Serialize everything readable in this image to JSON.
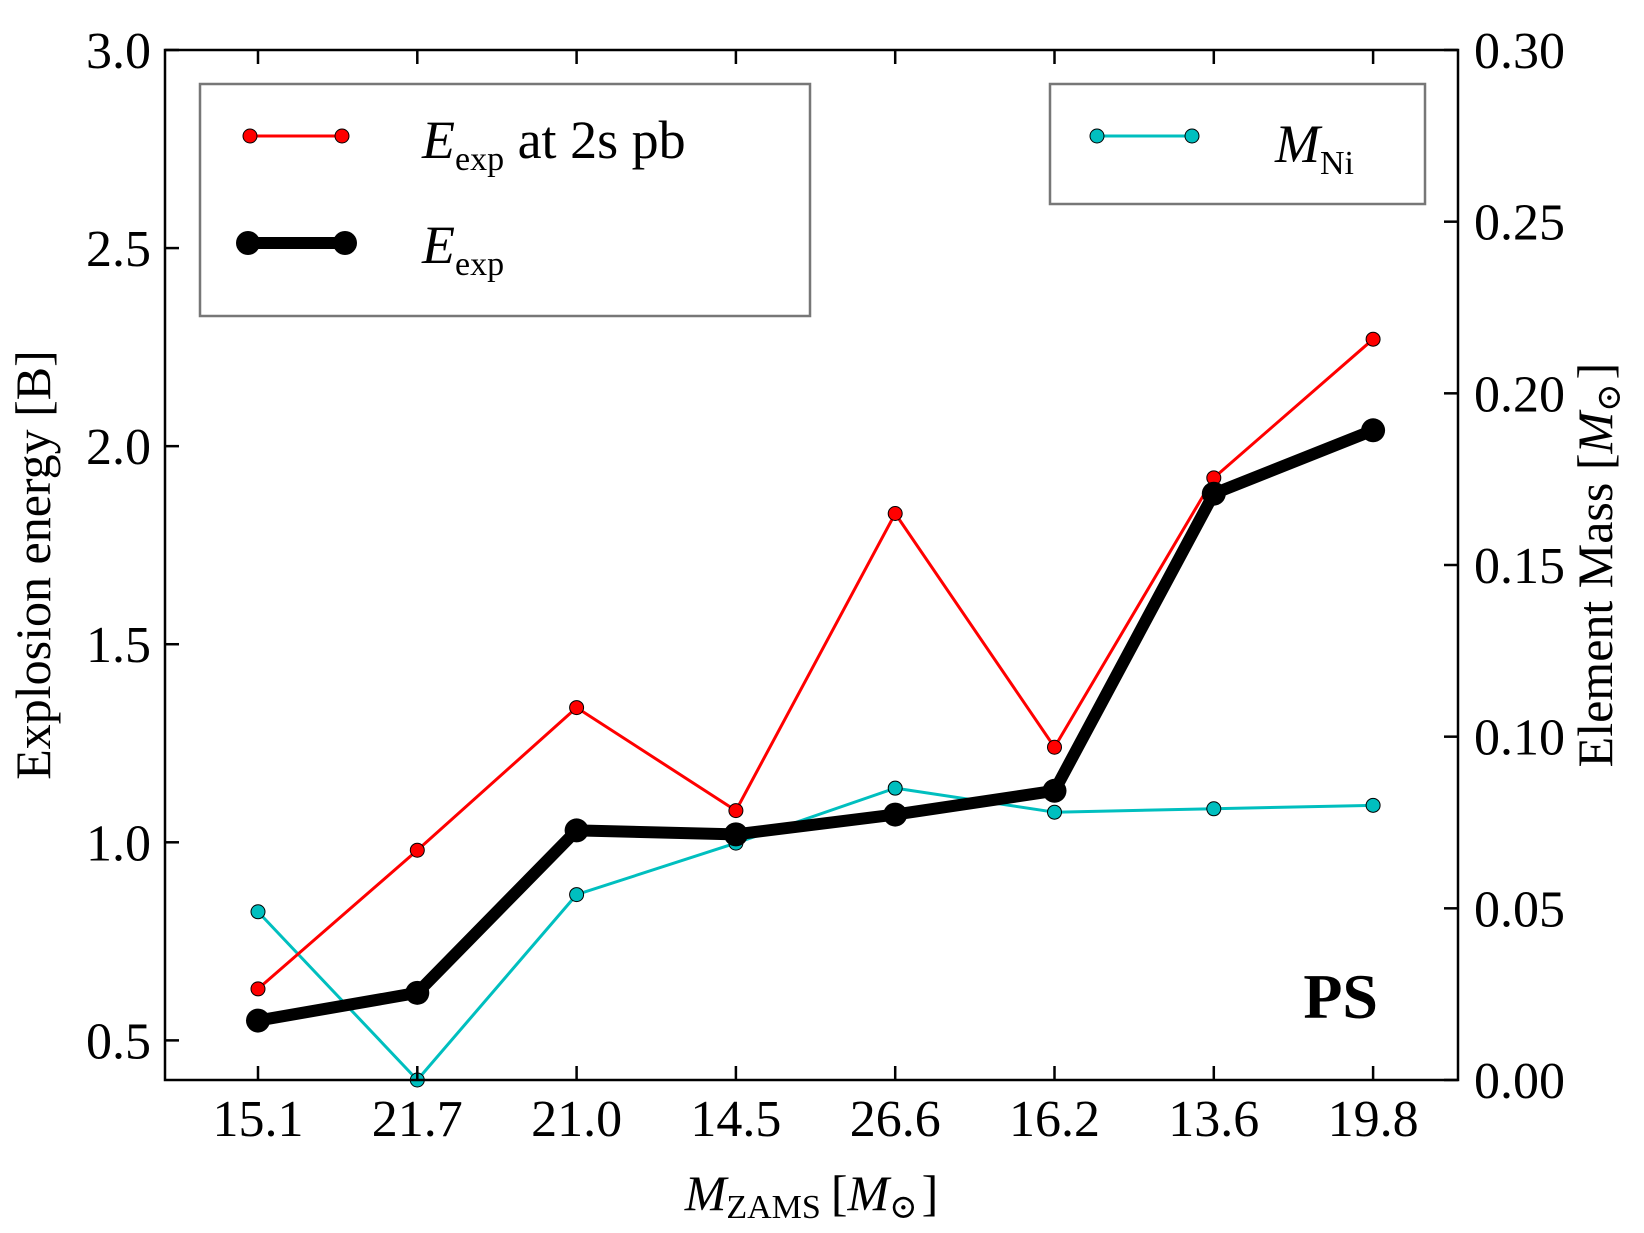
{
  "chart_data": {
    "type": "line",
    "categories": [
      "15.1",
      "21.7",
      "21.0",
      "14.5",
      "26.6",
      "16.2",
      "13.6",
      "19.8"
    ],
    "series": [
      {
        "name": "E_exp at 2s pb",
        "axis": "left",
        "color": "#ff0000",
        "values": [
          0.63,
          0.98,
          1.34,
          1.08,
          1.83,
          1.24,
          1.92,
          2.27
        ]
      },
      {
        "name": "E_exp",
        "axis": "left",
        "color": "#000000",
        "values": [
          0.55,
          0.62,
          1.03,
          1.02,
          1.07,
          1.13,
          1.88,
          2.04
        ]
      },
      {
        "name": "M_Ni",
        "axis": "right",
        "color": "#00bfbf",
        "values": [
          0.049,
          0.0,
          0.054,
          0.069,
          0.085,
          0.078,
          0.079,
          0.08
        ]
      }
    ],
    "xlabel": {
      "var": "M",
      "sub": "ZAMS",
      "unit_open": "[",
      "unit_var": "M",
      "unit_sub": "⊙",
      "unit_close": "]"
    },
    "ylabel_left": "Explosion energy [B]",
    "ylabel_right": {
      "text": "Element Mass [",
      "var": "M",
      "sub": "⊙",
      "close": "]"
    },
    "ylim_left": [
      0.4,
      3.0
    ],
    "ylim_right": [
      0.0,
      0.3
    ],
    "yticks_left": [
      "0.5",
      "1.0",
      "1.5",
      "2.0",
      "2.5",
      "3.0"
    ],
    "yticks_right": [
      "0.00",
      "0.05",
      "0.10",
      "0.15",
      "0.20",
      "0.25",
      "0.30"
    ],
    "legend_left": [
      {
        "var": "E",
        "sub": "exp",
        "suffix": " at 2s pb"
      },
      {
        "var": "E",
        "sub": "exp",
        "suffix": ""
      }
    ],
    "legend_right": [
      {
        "var": "M",
        "sub": "Ni",
        "suffix": ""
      }
    ],
    "annotation": "PS"
  }
}
